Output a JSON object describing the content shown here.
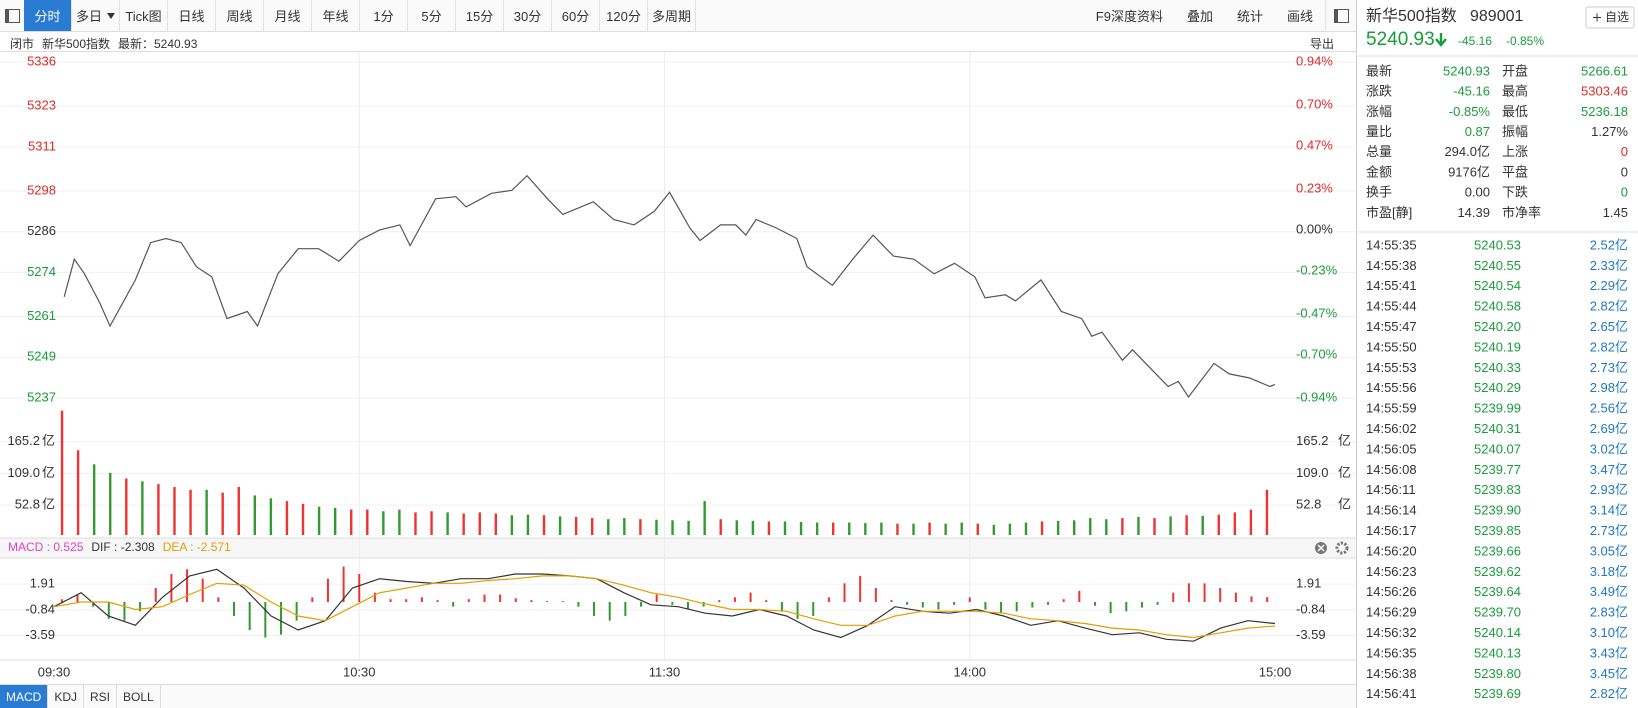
{
  "toolbar": {
    "items": [
      "分时",
      "多日",
      "Tick图",
      "日线",
      "周线",
      "月线",
      "年线",
      "1分",
      "5分",
      "15分",
      "30分",
      "60分",
      "120分",
      "多周期"
    ],
    "right_items": [
      "F9深度资料",
      "叠加",
      "统计",
      "画线"
    ]
  },
  "status": {
    "state": "闭市",
    "name": "新华500指数",
    "latest": "最新：5240.93",
    "export": "导出"
  },
  "chart_data": [
    {
      "type": "line",
      "color": "#555555",
      "x": [
        2,
        4,
        6,
        9,
        11,
        16,
        19,
        22,
        25,
        28,
        31,
        34,
        38,
        40,
        44,
        48,
        52,
        56,
        60,
        64,
        68,
        70,
        75,
        79,
        81,
        86,
        90,
        93,
        97,
        100,
        106,
        110,
        114,
        118,
        121,
        125,
        127,
        131,
        134,
        136,
        138,
        142,
        146,
        148,
        153,
        157,
        161,
        165,
        169,
        173,
        177,
        181,
        183,
        187,
        189,
        194,
        198,
        202,
        204,
        206,
        210,
        212,
        216,
        219,
        221,
        223,
        228,
        231,
        235,
        239,
        240
      ],
      "values": [
        5266.8,
        5277.9,
        5273.6,
        5265.0,
        5258.2,
        5271.8,
        5282.8,
        5284.0,
        5282.8,
        5275.7,
        5272.7,
        5260.4,
        5262.5,
        5258.2,
        5273.6,
        5281.0,
        5281.0,
        5277.3,
        5283.4,
        5286.5,
        5288.0,
        5281.9,
        5295.7,
        5296.3,
        5293.3,
        5297.3,
        5298.2,
        5302.5,
        5295.7,
        5291.1,
        5294.8,
        5289.6,
        5288.0,
        5292.0,
        5297.6,
        5287.1,
        5283.4,
        5288.0,
        5288.0,
        5285.0,
        5289.6,
        5287.1,
        5284.0,
        5275.7,
        5270.2,
        5277.9,
        5285.0,
        5278.8,
        5277.9,
        5273.6,
        5276.7,
        5272.7,
        5266.5,
        5267.4,
        5265.6,
        5271.8,
        5262.5,
        5260.4,
        5255.2,
        5256.4,
        5248.1,
        5251.2,
        5245.0,
        5240.4,
        5241.9,
        5237.3,
        5247.2,
        5244.1,
        5242.9,
        5240.4,
        5241.0
      ],
      "xlim": [
        0,
        240
      ],
      "xticks": [
        {
          "value": 0,
          "label": "09:30"
        },
        {
          "value": 60,
          "label": "10:30"
        },
        {
          "value": 120,
          "label": "11:30"
        },
        {
          "value": 180,
          "label": "14:00"
        },
        {
          "value": 240,
          "label": "15:00"
        }
      ],
      "ylim": [
        5237,
        5336
      ],
      "yticks": [
        5336,
        5323,
        5311,
        5298,
        5286,
        5274,
        5261,
        5249,
        5237
      ],
      "y2lim": [
        -0.94,
        0.94
      ],
      "y2ticks": [
        {
          "value": 0.94,
          "label": "0.94%"
        },
        {
          "value": 0.7,
          "label": "0.70%"
        },
        {
          "value": 0.47,
          "label": "0.47%"
        },
        {
          "value": 0.23,
          "label": "0.23%"
        },
        {
          "value": 0,
          "label": "0.00%"
        },
        {
          "value": -0.23,
          "label": "-0.23%"
        },
        {
          "value": -0.47,
          "label": "-0.47%"
        },
        {
          "value": -0.7,
          "label": "-0.70%"
        },
        {
          "value": -0.94,
          "label": "-0.94%"
        }
      ],
      "grid": true
    },
    {
      "type": "bar",
      "unit": "亿",
      "values": [
        220,
        150,
        125,
        110,
        100,
        95,
        90,
        85,
        80,
        80,
        75,
        85,
        70,
        65,
        60,
        55,
        50,
        48,
        45,
        45,
        42,
        45,
        40,
        42,
        40,
        38,
        40,
        38,
        35,
        36,
        35,
        33,
        32,
        30,
        28,
        30,
        28,
        27,
        26,
        25,
        60,
        28,
        26,
        25,
        24,
        24,
        23,
        22,
        22,
        22,
        21,
        22,
        20,
        20,
        22,
        20,
        22,
        20,
        18,
        20,
        22,
        24,
        25,
        26,
        30,
        28,
        30,
        32,
        30,
        33,
        35,
        34,
        36,
        40,
        45,
        80
      ],
      "colors": [
        "#e33",
        "#e33",
        "#393",
        "#393",
        "#e33",
        "#393",
        "#e33",
        "#e33",
        "#e33",
        "#393",
        "#e33",
        "#e33",
        "#393",
        "#393",
        "#e33",
        "#e33",
        "#393",
        "#393",
        "#e33",
        "#e33",
        "#393",
        "#393",
        "#e33",
        "#e33",
        "#393",
        "#e33",
        "#e33",
        "#e33",
        "#393",
        "#393",
        "#e33",
        "#393",
        "#e33",
        "#e33",
        "#393",
        "#393",
        "#e33",
        "#393",
        "#393",
        "#393",
        "#393",
        "#e33",
        "#393",
        "#393",
        "#e33",
        "#393",
        "#393",
        "#393",
        "#e33",
        "#393",
        "#393",
        "#393",
        "#e33",
        "#393",
        "#e33",
        "#393",
        "#393",
        "#e33",
        "#393",
        "#393",
        "#393",
        "#e33",
        "#393",
        "#393",
        "#393",
        "#393",
        "#e33",
        "#393",
        "#e33",
        "#393",
        "#e33",
        "#393",
        "#e33",
        "#e33",
        "#e33",
        "#e33"
      ],
      "ylim": [
        0,
        230
      ],
      "yticks": [
        165.2,
        {
          "value": 109.0,
          "label": "109.0"
        },
        52.8
      ],
      "grid": true
    },
    {
      "type": "macd",
      "legend": [
        {
          "label": "MACD : 0.525",
          "color": "#e040c8"
        },
        {
          "label": "DIF : -2.308",
          "color": "#333333"
        },
        {
          "label": "DEA : -2.571",
          "color": "#e0a000"
        }
      ],
      "histogram": [
        0.3,
        0.8,
        -0.5,
        -1.8,
        -2.0,
        -1.0,
        1.5,
        3.0,
        3.5,
        2.5,
        0.5,
        -1.5,
        -3.0,
        -3.8,
        -3.5,
        -2.0,
        0.5,
        2.5,
        3.8,
        3.0,
        1.0,
        0.3,
        0.3,
        0.5,
        0.2,
        -0.5,
        0.3,
        0.8,
        0.8,
        0.4,
        0.2,
        0.1,
        0.1,
        -0.5,
        -1.5,
        -2.0,
        -1.5,
        -0.5,
        0.8,
        -0.3,
        -0.8,
        -0.5,
        0.2,
        0.5,
        1.0,
        0.2,
        -1.0,
        -1.8,
        -1.5,
        0.5,
        2.0,
        2.8,
        1.5,
        0.2,
        -0.3,
        -0.6,
        -0.8,
        -0.3,
        0.5,
        -0.8,
        -1.2,
        -1.0,
        -0.6,
        -0.3,
        0.3,
        1.2,
        -0.4,
        -1.2,
        -1.0,
        -0.6,
        -0.3,
        1.0,
        2.0,
        2.0,
        1.5,
        1.0,
        0.6,
        0.525
      ],
      "up_color": "#e33",
      "down_color": "#393",
      "series": [
        {
          "name": "DIF",
          "color": "#333333",
          "values": [
            -0.5,
            1.0,
            -1.5,
            -2.5,
            0.5,
            2.8,
            3.5,
            1.5,
            -1.5,
            -3.0,
            -2.0,
            1.5,
            2.5,
            2.2,
            2.0,
            2.5,
            2.5,
            3.0,
            3.0,
            2.8,
            2.5,
            1.0,
            -0.3,
            -0.5,
            -1.2,
            -1.5,
            -0.8,
            -1.5,
            -3.0,
            -3.8,
            -2.5,
            -0.5,
            -1.0,
            -1.2,
            -0.8,
            -1.5,
            -2.5,
            -2.0,
            -2.8,
            -3.5,
            -3.3,
            -4.0,
            -4.2,
            -2.8,
            -2.0,
            -2.308
          ]
        },
        {
          "name": "DEA",
          "color": "#e0a000",
          "values": [
            -0.5,
            0.0,
            0.0,
            -0.8,
            -0.5,
            0.8,
            2.0,
            1.8,
            0.0,
            -1.5,
            -2.0,
            -0.5,
            1.0,
            1.5,
            2.0,
            2.0,
            2.3,
            2.5,
            2.8,
            2.8,
            2.5,
            1.8,
            1.0,
            0.5,
            -0.2,
            -0.8,
            -0.8,
            -1.0,
            -1.8,
            -2.5,
            -2.5,
            -1.5,
            -1.0,
            -1.0,
            -1.0,
            -1.2,
            -1.8,
            -2.0,
            -2.3,
            -2.8,
            -3.0,
            -3.5,
            -3.8,
            -3.3,
            -2.8,
            -2.571
          ]
        }
      ],
      "ylim": [
        -6,
        4.5
      ],
      "yticks": [
        1.91,
        -0.84,
        -3.59
      ],
      "grid": true
    }
  ],
  "indicator_tabs": [
    "MACD",
    "KDJ",
    "RSI",
    "BOLL"
  ],
  "quote_header": {
    "name": "新华500指数",
    "code": "989001",
    "price": "5240.93",
    "change": "-45.16",
    "change_pct": "-0.85%",
    "watch": "自选"
  },
  "quote": {
    "rows": [
      [
        "最新",
        "5240.93",
        "开盘",
        "5266.61"
      ],
      [
        "涨跌",
        "-45.16",
        "最高",
        "5303.46"
      ],
      [
        "涨幅",
        "-0.85%",
        "最低",
        "5236.18"
      ],
      [
        "量比",
        "0.87",
        "振幅",
        "1.27%"
      ],
      [
        "总量",
        "294.0亿",
        "上涨",
        "0"
      ],
      [
        "金额",
        "9176亿",
        "平盘",
        "0"
      ],
      [
        "换手",
        "0.00",
        "下跌",
        "0"
      ],
      [
        "市盈[静]",
        "14.39",
        "市净率",
        "1.45"
      ]
    ],
    "value_colors": [
      [
        "#1a9c3b",
        "#1a9c3b"
      ],
      [
        "#1a9c3b",
        "#e02a2a"
      ],
      [
        "#1a9c3b",
        "#1a9c3b"
      ],
      [
        "#1a9c3b",
        "#333333"
      ],
      [
        "#333333",
        "#e02a2a"
      ],
      [
        "#333333",
        "#333333"
      ],
      [
        "#333333",
        "#1a9c3b"
      ],
      [
        "#333333",
        "#333333"
      ]
    ]
  },
  "trades": {
    "colors": [
      "#333333",
      "#1a9c3b",
      "#1f77c4"
    ],
    "rows": [
      [
        "14:55:35",
        "5240.53",
        "2.52亿"
      ],
      [
        "14:55:38",
        "5240.55",
        "2.33亿"
      ],
      [
        "14:55:41",
        "5240.54",
        "2.29亿"
      ],
      [
        "14:55:44",
        "5240.58",
        "2.82亿"
      ],
      [
        "14:55:47",
        "5240.20",
        "2.65亿"
      ],
      [
        "14:55:50",
        "5240.19",
        "2.82亿"
      ],
      [
        "14:55:53",
        "5240.33",
        "2.73亿"
      ],
      [
        "14:55:56",
        "5240.29",
        "2.98亿"
      ],
      [
        "14:55:59",
        "5239.99",
        "2.56亿"
      ],
      [
        "14:56:02",
        "5240.31",
        "2.69亿"
      ],
      [
        "14:56:05",
        "5240.07",
        "3.02亿"
      ],
      [
        "14:56:08",
        "5239.77",
        "3.47亿"
      ],
      [
        "14:56:11",
        "5239.83",
        "2.93亿"
      ],
      [
        "14:56:14",
        "5239.90",
        "3.14亿"
      ],
      [
        "14:56:17",
        "5239.85",
        "2.73亿"
      ],
      [
        "14:56:20",
        "5239.66",
        "3.05亿"
      ],
      [
        "14:56:23",
        "5239.62",
        "3.18亿"
      ],
      [
        "14:56:26",
        "5239.64",
        "3.49亿"
      ],
      [
        "14:56:29",
        "5239.70",
        "2.83亿"
      ],
      [
        "14:56:32",
        "5240.14",
        "3.10亿"
      ],
      [
        "14:56:35",
        "5240.13",
        "3.43亿"
      ],
      [
        "14:56:38",
        "5239.80",
        "3.45亿"
      ],
      [
        "14:56:41",
        "5239.69",
        "2.82亿"
      ]
    ]
  }
}
